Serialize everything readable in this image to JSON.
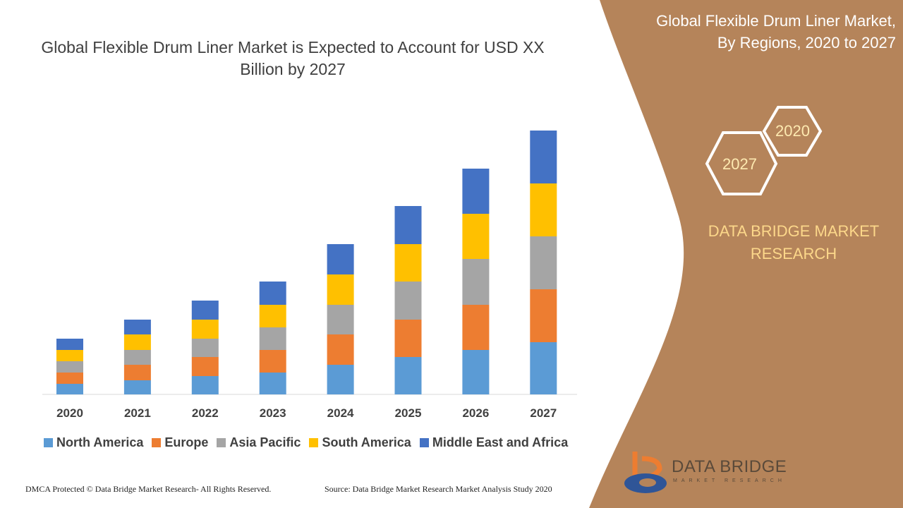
{
  "chart_data": {
    "type": "bar",
    "stacked": true,
    "title": "Global Flexible Drum Liner Market is Expected to Account for USD XX Billion by 2027",
    "categories": [
      "2020",
      "2021",
      "2022",
      "2023",
      "2024",
      "2025",
      "2026",
      "2027"
    ],
    "series": [
      {
        "name": "North America",
        "color": "#5B9BD5",
        "values": [
          15,
          20,
          26,
          31,
          42,
          53,
          63,
          74
        ]
      },
      {
        "name": "Europe",
        "color": "#ED7D31",
        "values": [
          16,
          22,
          27,
          32,
          43,
          53,
          64,
          75
        ]
      },
      {
        "name": "Asia Pacific",
        "color": "#A5A5A5",
        "values": [
          16,
          21,
          26,
          32,
          42,
          54,
          65,
          75
        ]
      },
      {
        "name": "South America",
        "color": "#FFC000",
        "values": [
          16,
          22,
          27,
          32,
          43,
          53,
          64,
          75
        ]
      },
      {
        "name": "Middle East and Africa",
        "color": "#4472C4",
        "values": [
          16,
          21,
          27,
          33,
          43,
          54,
          64,
          75
        ]
      }
    ],
    "ylim": [
      0,
      380
    ],
    "grid": false,
    "legend_position": "bottom",
    "y_axis_labels": false
  },
  "panel": {
    "title_line1": "Global Flexible Drum Liner Market,",
    "title_line2": "By Regions, 2020 to 2027",
    "hex_a": "2020",
    "hex_b": "2027",
    "brand_line1": "DATA BRIDGE MARKET",
    "brand_line2": "RESEARCH",
    "bg_color": "#B5845A"
  },
  "logo": {
    "name": "DATA BRIDGE",
    "sub": "MARKET RESEARCH"
  },
  "footer": {
    "left": "DMCA Protected © Data Bridge Market Research- All Rights Reserved.",
    "right": "Source: Data Bridge Market Research Market Analysis Study 2020"
  }
}
